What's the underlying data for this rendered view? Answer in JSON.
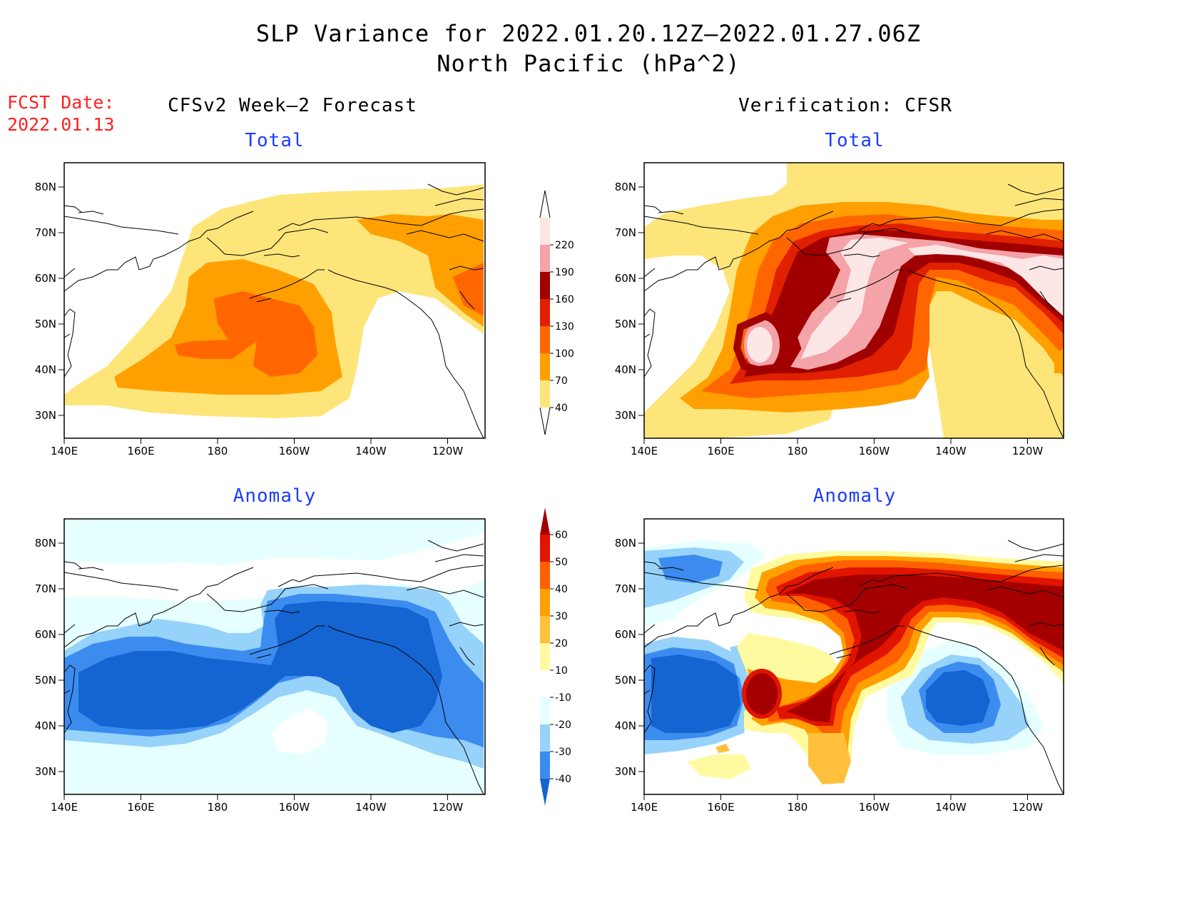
{
  "title": {
    "line1": "SLP Variance for 2022.01.20.12Z–2022.01.27.06Z",
    "line2": "North Pacific (hPa^2)"
  },
  "fcst_date": {
    "label": "FCST Date:",
    "value": "2022.01.13"
  },
  "columns": {
    "left_header": "CFSv2 Week–2 Forecast",
    "right_header": "Verification: CFSR"
  },
  "panels": {
    "fcst_total": {
      "subtitle": "Total"
    },
    "fcst_anom": {
      "subtitle": "Anomaly"
    },
    "verif_total": {
      "subtitle": "Total"
    },
    "verif_anom": {
      "subtitle": "Anomaly"
    }
  },
  "axes": {
    "lon_ticks": [
      "140E",
      "160E",
      "180",
      "160W",
      "140W",
      "120W"
    ],
    "lat_ticks": [
      "80N",
      "70N",
      "60N",
      "50N",
      "40N",
      "30N"
    ]
  },
  "colorbars": {
    "total": {
      "labels": [
        "40",
        "70",
        "100",
        "130",
        "160",
        "190",
        "220"
      ],
      "colors": [
        "#fee57a",
        "#ffa000",
        "#ff6600",
        "#e02000",
        "#a00000",
        "#f4a3a8",
        "#fde6e6"
      ]
    },
    "anomaly": {
      "labels": [
        "-40",
        "-30",
        "-20",
        "-10",
        "10",
        "20",
        "30",
        "40",
        "50",
        "60"
      ],
      "colors": [
        "#1464d2",
        "#3c8cf0",
        "#96d2fa",
        "#e6ffff",
        "#ffffff",
        "#fffaa0",
        "#ffc03c",
        "#ffa000",
        "#ff6000",
        "#e11400",
        "#a50000"
      ]
    }
  }
}
